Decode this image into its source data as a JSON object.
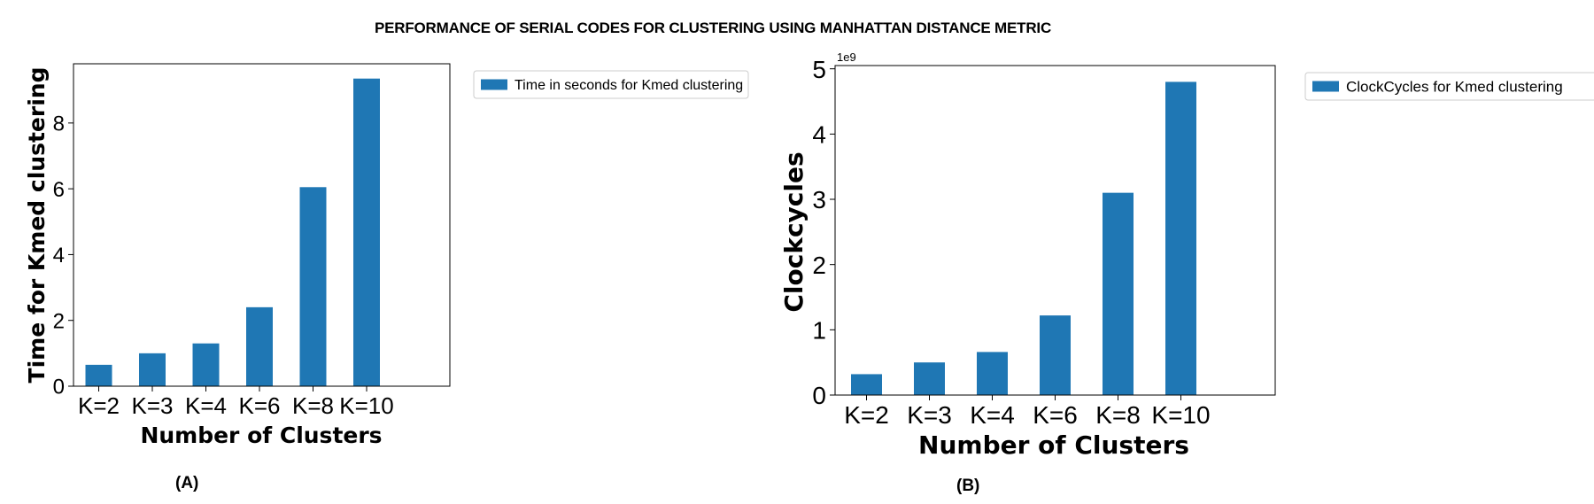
{
  "title": "PERFORMANCE OF SERIAL CODES FOR CLUSTERING USING MANHATTAN DISTANCE METRIC",
  "panel_labels": [
    "(A)",
    "(B)"
  ],
  "colors": {
    "bar": "#1f77b4"
  },
  "chart_data": [
    {
      "type": "bar",
      "categories": [
        "K=2",
        "K=3",
        "K=4",
        "K=6",
        "K=8",
        "K=10"
      ],
      "series": [
        {
          "name": "Time in seconds for Kmed clustering",
          "values": [
            0.65,
            1.0,
            1.3,
            2.4,
            6.05,
            9.35
          ]
        }
      ],
      "xlabel": "Number of Clusters",
      "ylabel": "Time for Kmed clustering",
      "ylim": [
        0,
        9.8
      ],
      "yticks": [
        0,
        2,
        4,
        6,
        8
      ],
      "scale_label": "",
      "legend": "outside-right-top",
      "grid": false
    },
    {
      "type": "bar",
      "categories": [
        "K=2",
        "K=3",
        "K=4",
        "K=6",
        "K=8",
        "K=10"
      ],
      "series": [
        {
          "name": "ClockCycles for Kmed clustering",
          "values": [
            0.32,
            0.5,
            0.66,
            1.22,
            3.1,
            4.8
          ]
        }
      ],
      "xlabel": "Number of Clusters",
      "ylabel": "Clockcycles",
      "ylim": [
        0,
        5.05
      ],
      "yticks": [
        0,
        1,
        2,
        3,
        4,
        5
      ],
      "scale_label": "1e9",
      "legend": "outside-right-top",
      "grid": false
    }
  ]
}
